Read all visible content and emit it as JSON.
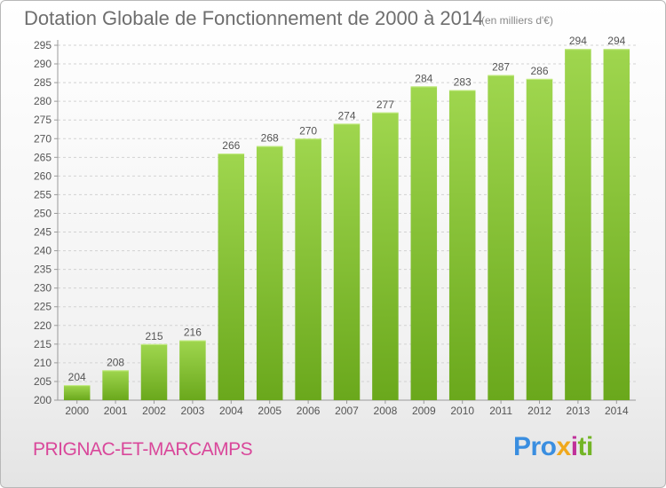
{
  "header": {
    "title": "Dotation Globale de Fonctionnement de 2000 à 2014",
    "subtitle": "(en milliers d'€)"
  },
  "footer": {
    "commune": "PRIGNAC-ET-MARCAMPS",
    "logo": {
      "p1": "Pro",
      "p2": "x",
      "p3": "i",
      "p4": "ti"
    }
  },
  "colors": {
    "bar": "#7cbf2a",
    "bar_light": "#9bd44a",
    "title": "#6e6e6e",
    "commune": "#d9479a"
  },
  "chart_data": {
    "type": "bar",
    "title": "Dotation Globale de Fonctionnement de 2000 à 2014",
    "subtitle": "(en milliers d'€)",
    "categories": [
      "2000",
      "2001",
      "2002",
      "2003",
      "2004",
      "2005",
      "2006",
      "2007",
      "2008",
      "2009",
      "2010",
      "2011",
      "2012",
      "2013",
      "2014"
    ],
    "values": [
      204,
      208,
      215,
      216,
      266,
      268,
      270,
      274,
      277,
      284,
      283,
      287,
      286,
      294,
      294
    ],
    "ylim": [
      200,
      295
    ],
    "ytick_step": 5,
    "grid": true,
    "legend": "none"
  }
}
